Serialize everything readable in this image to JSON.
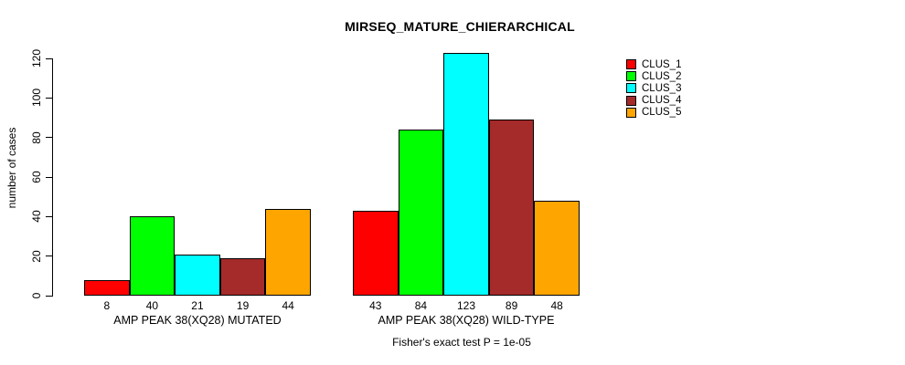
{
  "chart_data": {
    "type": "bar",
    "title": "MIRSEQ_MATURE_CHIERARCHICAL",
    "ylabel": "number of cases",
    "xlabel": "",
    "ylim": [
      0,
      120
    ],
    "yticks": [
      0,
      20,
      40,
      60,
      80,
      100,
      120
    ],
    "grid": false,
    "legend_position": "top-right",
    "categories": [
      "AMP PEAK 38(XQ28) MUTATED",
      "AMP PEAK 38(XQ28) WILD-TYPE"
    ],
    "series": [
      {
        "name": "CLUS_1",
        "color": "#FF0000",
        "values": [
          8,
          43
        ]
      },
      {
        "name": "CLUS_2",
        "color": "#00FF00",
        "values": [
          40,
          84
        ]
      },
      {
        "name": "CLUS_3",
        "color": "#00FFFF",
        "values": [
          21,
          123
        ]
      },
      {
        "name": "CLUS_4",
        "color": "#A52A2A",
        "values": [
          19,
          89
        ]
      },
      {
        "name": "CLUS_5",
        "color": "#FFA500",
        "values": [
          44,
          48
        ]
      }
    ],
    "bar_value_labels_shown": true,
    "footnote": "Fisher's exact test P = 1e-05"
  }
}
